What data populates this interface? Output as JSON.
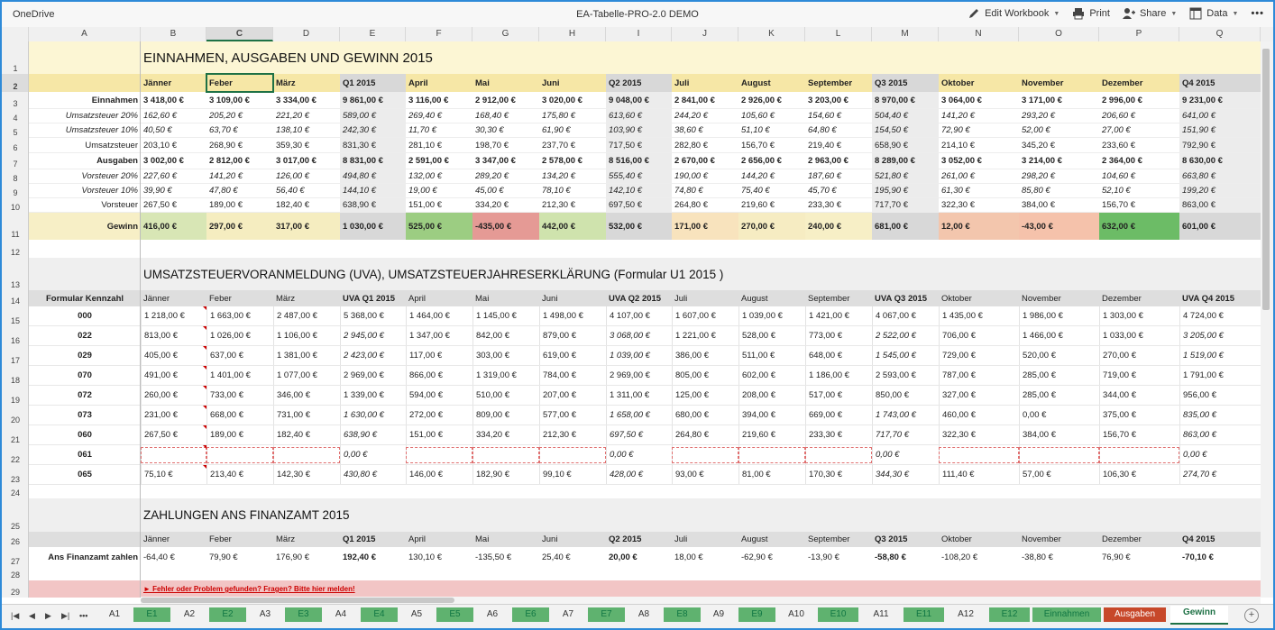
{
  "app": {
    "name": "OneDrive",
    "title": "EA-Tabelle-PRO-2.0 DEMO"
  },
  "toolbar": {
    "edit": "Edit Workbook",
    "print": "Print",
    "share": "Share",
    "data": "Data",
    "more": "•••"
  },
  "columns": [
    "A",
    "B",
    "C",
    "D",
    "E",
    "F",
    "G",
    "H",
    "I",
    "J",
    "K",
    "L",
    "M",
    "N",
    "O",
    "P",
    "Q"
  ],
  "selected_column": "C",
  "sections": {
    "s1_title": "EINNAHMEN, AUSGABEN UND GEWINN 2015",
    "s2_title": "UMSATZSTEUERVORANMELDUNG (UVA), UMSATZSTEUERJAHRESERKLÄRUNG (Formular U1 2015 )",
    "s3_title": "ZAHLUNGEN ANS FINANZAMT 2015",
    "warning": "► Fehler oder Problem gefunden? Fragen? Bitte hier melden!"
  },
  "months_header": [
    "Jänner",
    "Feber",
    "März",
    "Q1 2015",
    "April",
    "Mai",
    "Juni",
    "Q2 2015",
    "Juli",
    "August",
    "September",
    "Q3 2015",
    "Oktober",
    "November",
    "Dezember",
    "Q4 2015"
  ],
  "uva_header": [
    "Jänner",
    "Feber",
    "März",
    "UVA Q1 2015",
    "April",
    "Mai",
    "Juni",
    "UVA Q2 2015",
    "Juli",
    "August",
    "September",
    "UVA Q3 2015",
    "Oktober",
    "November",
    "Dezember",
    "UVA Q4 2015"
  ],
  "pay_header": [
    "Jänner",
    "Feber",
    "März",
    "Q1 2015",
    "April",
    "Mai",
    "Juni",
    "Q2 2015",
    "Juli",
    "August",
    "September",
    "Q3 2015",
    "Oktober",
    "November",
    "Dezember",
    "Q4 2015"
  ],
  "income_rows": [
    {
      "label": "Einnahmen",
      "style": "b",
      "values": [
        "3 418,00 €",
        "3 109,00 €",
        "3 334,00 €",
        "9 861,00 €",
        "3 116,00 €",
        "2 912,00 €",
        "3 020,00 €",
        "9 048,00 €",
        "2 841,00 €",
        "2 926,00 €",
        "3 203,00 €",
        "8 970,00 €",
        "3 064,00 €",
        "3 171,00 €",
        "2 996,00 €",
        "9 231,00 €"
      ]
    },
    {
      "label": "Umsatzsteuer 20%",
      "style": "i",
      "values": [
        "162,60 €",
        "205,20 €",
        "221,20 €",
        "589,00 €",
        "269,40 €",
        "168,40 €",
        "175,80 €",
        "613,60 €",
        "244,20 €",
        "105,60 €",
        "154,60 €",
        "504,40 €",
        "141,20 €",
        "293,20 €",
        "206,60 €",
        "641,00 €"
      ]
    },
    {
      "label": "Umsatzsteuer 10%",
      "style": "i",
      "values": [
        "40,50 €",
        "63,70 €",
        "138,10 €",
        "242,30 €",
        "11,70 €",
        "30,30 €",
        "61,90 €",
        "103,90 €",
        "38,60 €",
        "51,10 €",
        "64,80 €",
        "154,50 €",
        "72,90 €",
        "52,00 €",
        "27,00 €",
        "151,90 €"
      ]
    },
    {
      "label": "Umsatzsteuer",
      "style": "n",
      "values": [
        "203,10 €",
        "268,90 €",
        "359,30 €",
        "831,30 €",
        "281,10 €",
        "198,70 €",
        "237,70 €",
        "717,50 €",
        "282,80 €",
        "156,70 €",
        "219,40 €",
        "658,90 €",
        "214,10 €",
        "345,20 €",
        "233,60 €",
        "792,90 €"
      ]
    },
    {
      "label": "Ausgaben",
      "style": "b",
      "values": [
        "3 002,00 €",
        "2 812,00 €",
        "3 017,00 €",
        "8 831,00 €",
        "2 591,00 €",
        "3 347,00 €",
        "2 578,00 €",
        "8 516,00 €",
        "2 670,00 €",
        "2 656,00 €",
        "2 963,00 €",
        "8 289,00 €",
        "3 052,00 €",
        "3 214,00 €",
        "2 364,00 €",
        "8 630,00 €"
      ]
    },
    {
      "label": "Vorsteuer 20%",
      "style": "i",
      "values": [
        "227,60 €",
        "141,20 €",
        "126,00 €",
        "494,80 €",
        "132,00 €",
        "289,20 €",
        "134,20 €",
        "555,40 €",
        "190,00 €",
        "144,20 €",
        "187,60 €",
        "521,80 €",
        "261,00 €",
        "298,20 €",
        "104,60 €",
        "663,80 €"
      ]
    },
    {
      "label": "Vorsteuer 10%",
      "style": "i",
      "values": [
        "39,90 €",
        "47,80 €",
        "56,40 €",
        "144,10 €",
        "19,00 €",
        "45,00 €",
        "78,10 €",
        "142,10 €",
        "74,80 €",
        "75,40 €",
        "45,70 €",
        "195,90 €",
        "61,30 €",
        "85,80 €",
        "52,10 €",
        "199,20 €"
      ]
    },
    {
      "label": "Vorsteuer",
      "style": "n",
      "values": [
        "267,50 €",
        "189,00 €",
        "182,40 €",
        "638,90 €",
        "151,00 €",
        "334,20 €",
        "212,30 €",
        "697,50 €",
        "264,80 €",
        "219,60 €",
        "233,30 €",
        "717,70 €",
        "322,30 €",
        "384,00 €",
        "156,70 €",
        "863,00 €"
      ]
    }
  ],
  "profit": {
    "label": "Gewinn",
    "values": [
      "416,00 €",
      "297,00 €",
      "317,00 €",
      "1 030,00 €",
      "525,00 €",
      "-435,00 €",
      "442,00 €",
      "532,00 €",
      "171,00 €",
      "270,00 €",
      "240,00 €",
      "681,00 €",
      "12,00 €",
      "-43,00 €",
      "632,00 €",
      "601,00 €"
    ],
    "colors": [
      "#d8e6b5",
      "#f5edc0",
      "#f5edc0",
      "#d8d8d8",
      "#9ccd82",
      "#e59a95",
      "#cfe3ad",
      "#d8d8d8",
      "#f8e3bd",
      "#f6ecc2",
      "#f7efc6",
      "#d8d8d8",
      "#f3c6ad",
      "#f5c2ab",
      "#6cbc66",
      "#d8d8d8"
    ]
  },
  "uva_label": "Formular Kennzahl",
  "uva_rows": [
    {
      "code": "000",
      "values": [
        "1 218,00 €",
        "1 663,00 €",
        "2 487,00 €",
        "5 368,00 €",
        "1 464,00 €",
        "1 145,00 €",
        "1 498,00 €",
        "4 107,00 €",
        "1 607,00 €",
        "1 039,00 €",
        "1 421,00 €",
        "4 067,00 €",
        "1 435,00 €",
        "1 986,00 €",
        "1 303,00 €",
        "4 724,00 €"
      ],
      "italic_q": false
    },
    {
      "code": "022",
      "values": [
        "813,00 €",
        "1 026,00 €",
        "1 106,00 €",
        "2 945,00 €",
        "1 347,00 €",
        "842,00 €",
        "879,00 €",
        "3 068,00 €",
        "1 221,00 €",
        "528,00 €",
        "773,00 €",
        "2 522,00 €",
        "706,00 €",
        "1 466,00 €",
        "1 033,00 €",
        "3 205,00 €"
      ],
      "italic_q": true
    },
    {
      "code": "029",
      "values": [
        "405,00 €",
        "637,00 €",
        "1 381,00 €",
        "2 423,00 €",
        "117,00 €",
        "303,00 €",
        "619,00 €",
        "1 039,00 €",
        "386,00 €",
        "511,00 €",
        "648,00 €",
        "1 545,00 €",
        "729,00 €",
        "520,00 €",
        "270,00 €",
        "1 519,00 €"
      ],
      "italic_q": true
    },
    {
      "code": "070",
      "values": [
        "491,00 €",
        "1 401,00 €",
        "1 077,00 €",
        "2 969,00 €",
        "866,00 €",
        "1 319,00 €",
        "784,00 €",
        "2 969,00 €",
        "805,00 €",
        "602,00 €",
        "1 186,00 €",
        "2 593,00 €",
        "787,00 €",
        "285,00 €",
        "719,00 €",
        "1 791,00 €"
      ],
      "italic_q": false
    },
    {
      "code": "072",
      "values": [
        "260,00 €",
        "733,00 €",
        "346,00 €",
        "1 339,00 €",
        "594,00 €",
        "510,00 €",
        "207,00 €",
        "1 311,00 €",
        "125,00 €",
        "208,00 €",
        "517,00 €",
        "850,00 €",
        "327,00 €",
        "285,00 €",
        "344,00 €",
        "956,00 €"
      ],
      "italic_q": false
    },
    {
      "code": "073",
      "values": [
        "231,00 €",
        "668,00 €",
        "731,00 €",
        "1 630,00 €",
        "272,00 €",
        "809,00 €",
        "577,00 €",
        "1 658,00 €",
        "680,00 €",
        "394,00 €",
        "669,00 €",
        "1 743,00 €",
        "460,00 €",
        "0,00 €",
        "375,00 €",
        "835,00 €"
      ],
      "italic_q": true
    },
    {
      "code": "060",
      "values": [
        "267,50 €",
        "189,00 €",
        "182,40 €",
        "638,90 €",
        "151,00 €",
        "334,20 €",
        "212,30 €",
        "697,50 €",
        "264,80 €",
        "219,60 €",
        "233,30 €",
        "717,70 €",
        "322,30 €",
        "384,00 €",
        "156,70 €",
        "863,00 €"
      ],
      "italic_q": true
    },
    {
      "code": "061",
      "values": [
        "",
        "",
        "",
        "0,00 €",
        "",
        "",
        "",
        "0,00 €",
        "",
        "",
        "",
        "0,00 €",
        "",
        "",
        "",
        "0,00 €"
      ],
      "italic_q": true
    },
    {
      "code": "065",
      "values": [
        "75,10 €",
        "213,40 €",
        "142,30 €",
        "430,80 €",
        "146,00 €",
        "182,90 €",
        "99,10 €",
        "428,00 €",
        "93,00 €",
        "81,00 €",
        "170,30 €",
        "344,30 €",
        "111,40 €",
        "57,00 €",
        "106,30 €",
        "274,70 €"
      ],
      "italic_q": true
    }
  ],
  "pay_row": {
    "label": "Ans Finanzamt zahlen",
    "values": [
      "-64,40 €",
      "79,90 €",
      "176,90 €",
      "192,40 €",
      "130,10 €",
      "-135,50 €",
      "25,40 €",
      "20,00 €",
      "18,00 €",
      "-62,90 €",
      "-13,90 €",
      "-58,80 €",
      "-108,20 €",
      "-38,80 €",
      "76,90 €",
      "-70,10 €"
    ]
  },
  "sheet_tabs": [
    {
      "label": "A1",
      "kind": "plain"
    },
    {
      "label": "E1",
      "kind": "green"
    },
    {
      "label": "A2",
      "kind": "plain"
    },
    {
      "label": "E2",
      "kind": "green"
    },
    {
      "label": "A3",
      "kind": "plain"
    },
    {
      "label": "E3",
      "kind": "green"
    },
    {
      "label": "A4",
      "kind": "plain"
    },
    {
      "label": "E4",
      "kind": "green"
    },
    {
      "label": "A5",
      "kind": "plain"
    },
    {
      "label": "E5",
      "kind": "green"
    },
    {
      "label": "A6",
      "kind": "plain"
    },
    {
      "label": "E6",
      "kind": "green"
    },
    {
      "label": "A7",
      "kind": "plain"
    },
    {
      "label": "E7",
      "kind": "green"
    },
    {
      "label": "A8",
      "kind": "plain"
    },
    {
      "label": "E8",
      "kind": "green"
    },
    {
      "label": "A9",
      "kind": "plain"
    },
    {
      "label": "E9",
      "kind": "green"
    },
    {
      "label": "A10",
      "kind": "plain"
    },
    {
      "label": "E10",
      "kind": "green"
    },
    {
      "label": "A11",
      "kind": "plain"
    },
    {
      "label": "E11",
      "kind": "green"
    },
    {
      "label": "A12",
      "kind": "plain"
    },
    {
      "label": "E12",
      "kind": "green"
    },
    {
      "label": "Einnahmen",
      "kind": "green"
    },
    {
      "label": "Ausgaben",
      "kind": "red"
    },
    {
      "label": "Gewinn",
      "kind": "active"
    }
  ]
}
